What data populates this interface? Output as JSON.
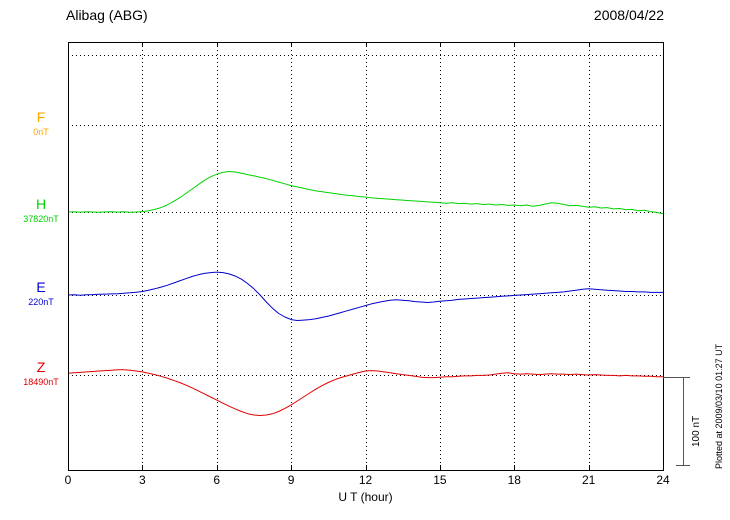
{
  "chart_data": {
    "type": "line",
    "title": "Alibag (ABG)",
    "date": "2008/04/22",
    "xlabel": "U T (hour)",
    "xlim": [
      0,
      24
    ],
    "x_ticks": [
      0,
      3,
      6,
      9,
      12,
      15,
      18,
      21,
      24
    ],
    "x_step": 0.25,
    "grid": "dotted",
    "scale_bar_label": "100 nT",
    "scale_bar_nT": 100,
    "annotation": "Plotted at 2009/03/10 01:27 UT",
    "series": [
      {
        "name": "F",
        "baseline_label": "0nT",
        "color": "#FFA500",
        "plotted": false,
        "values": [
          0,
          0,
          0,
          0,
          0,
          0,
          0,
          0,
          0,
          0,
          0,
          0,
          0,
          0,
          0,
          0,
          0,
          0,
          0,
          0,
          0,
          0,
          0,
          0,
          0,
          0,
          0,
          0,
          0,
          0,
          0,
          0,
          0,
          0,
          0,
          0,
          0,
          0,
          0,
          0,
          0,
          0,
          0,
          0,
          0,
          0,
          0,
          0,
          0,
          0,
          0,
          0,
          0,
          0,
          0,
          0,
          0,
          0,
          0,
          0,
          0,
          0,
          0,
          0,
          0,
          0,
          0,
          0,
          0,
          0,
          0,
          0,
          0,
          0,
          0,
          0,
          0,
          0,
          0,
          0,
          0,
          0,
          0,
          0,
          0,
          0,
          0,
          0,
          0,
          0,
          0,
          0,
          0,
          0,
          0,
          0,
          0
        ]
      },
      {
        "name": "H",
        "baseline_label": "37820nT",
        "color": "#00D400",
        "values": [
          0,
          0.3,
          -0.2,
          0.2,
          0,
          -0.3,
          0.1,
          0.3,
          -0.1,
          0.2,
          -0.2,
          0,
          0.5,
          1.5,
          3,
          5,
          8,
          12,
          16,
          21,
          26,
          31,
          36,
          40,
          43,
          45,
          46,
          45.5,
          44,
          42.5,
          41,
          39.5,
          38,
          36,
          34,
          32,
          30,
          28.5,
          27,
          25.5,
          24,
          23,
          22,
          21,
          20,
          19,
          18.5,
          17.5,
          17,
          16,
          15.5,
          15,
          14.5,
          14,
          13.5,
          13,
          12.5,
          12,
          11.5,
          11,
          10.5,
          10,
          10.5,
          9.5,
          10,
          9,
          9.5,
          8.5,
          9,
          8,
          8.5,
          7.5,
          8,
          7,
          8,
          6.5,
          7.5,
          9,
          10.5,
          10,
          8.5,
          7,
          7.5,
          6.5,
          5.5,
          6,
          4.5,
          5,
          3.5,
          4,
          2.5,
          3,
          1.5,
          2,
          0.5,
          -0.5,
          -2
        ]
      },
      {
        "name": "E",
        "baseline_label": "220nT",
        "color": "#0000CC",
        "values": [
          0,
          0.2,
          -0.2,
          0.3,
          0.5,
          0.8,
          1,
          1.2,
          1.5,
          2,
          2.5,
          3.2,
          4,
          5.5,
          7,
          9,
          11,
          13.5,
          16,
          18.5,
          21,
          23,
          24.5,
          25.5,
          26,
          25.5,
          24,
          21.5,
          18,
          13,
          7,
          0,
          -8,
          -15,
          -21,
          -25,
          -28,
          -29,
          -28.5,
          -28,
          -27,
          -25.5,
          -24,
          -22,
          -20,
          -18,
          -16,
          -14,
          -12,
          -10,
          -8.5,
          -7,
          -6,
          -5.5,
          -6,
          -6.5,
          -7.5,
          -8,
          -8.5,
          -8,
          -7,
          -6.5,
          -6,
          -5,
          -4.5,
          -4,
          -3.5,
          -3,
          -2.5,
          -2,
          -1.5,
          -1,
          -0.5,
          0,
          0.5,
          1,
          1.5,
          2,
          2.5,
          3,
          3.5,
          4.5,
          5.5,
          6.5,
          7,
          6.5,
          6,
          5.5,
          5,
          4.5,
          4,
          4,
          3.5,
          3.5,
          3,
          3,
          3
        ]
      },
      {
        "name": "Z",
        "baseline_label": "18490nT",
        "color": "#E00000",
        "values": [
          2,
          2.5,
          3,
          3.5,
          4,
          4.5,
          5,
          5.5,
          6,
          6,
          5.5,
          4.5,
          3.5,
          2,
          0.5,
          -1.5,
          -3.5,
          -6,
          -8.5,
          -11.5,
          -14.5,
          -18,
          -21.5,
          -25,
          -28.5,
          -32,
          -35.5,
          -38.5,
          -41.5,
          -44,
          -45.5,
          -46,
          -45.5,
          -44,
          -41.5,
          -38,
          -34,
          -29.5,
          -25,
          -20.5,
          -16,
          -12,
          -8.5,
          -5.5,
          -3,
          -1,
          1,
          3,
          4.5,
          5,
          4.5,
          3.5,
          2.5,
          1.5,
          0.5,
          -0.5,
          -1.5,
          -2.5,
          -3,
          -3,
          -2.5,
          -2,
          -2,
          -1.5,
          -1,
          -1,
          -0.5,
          -0.5,
          0,
          1,
          2,
          2.5,
          1.5,
          1,
          1.5,
          1,
          0.5,
          1,
          1.5,
          1,
          1,
          0.5,
          1,
          0.5,
          0,
          0.5,
          0,
          -0.5,
          -0.5,
          -1,
          -0.5,
          -1,
          -1,
          -1.5,
          -1.5,
          -2,
          -2
        ]
      }
    ]
  }
}
